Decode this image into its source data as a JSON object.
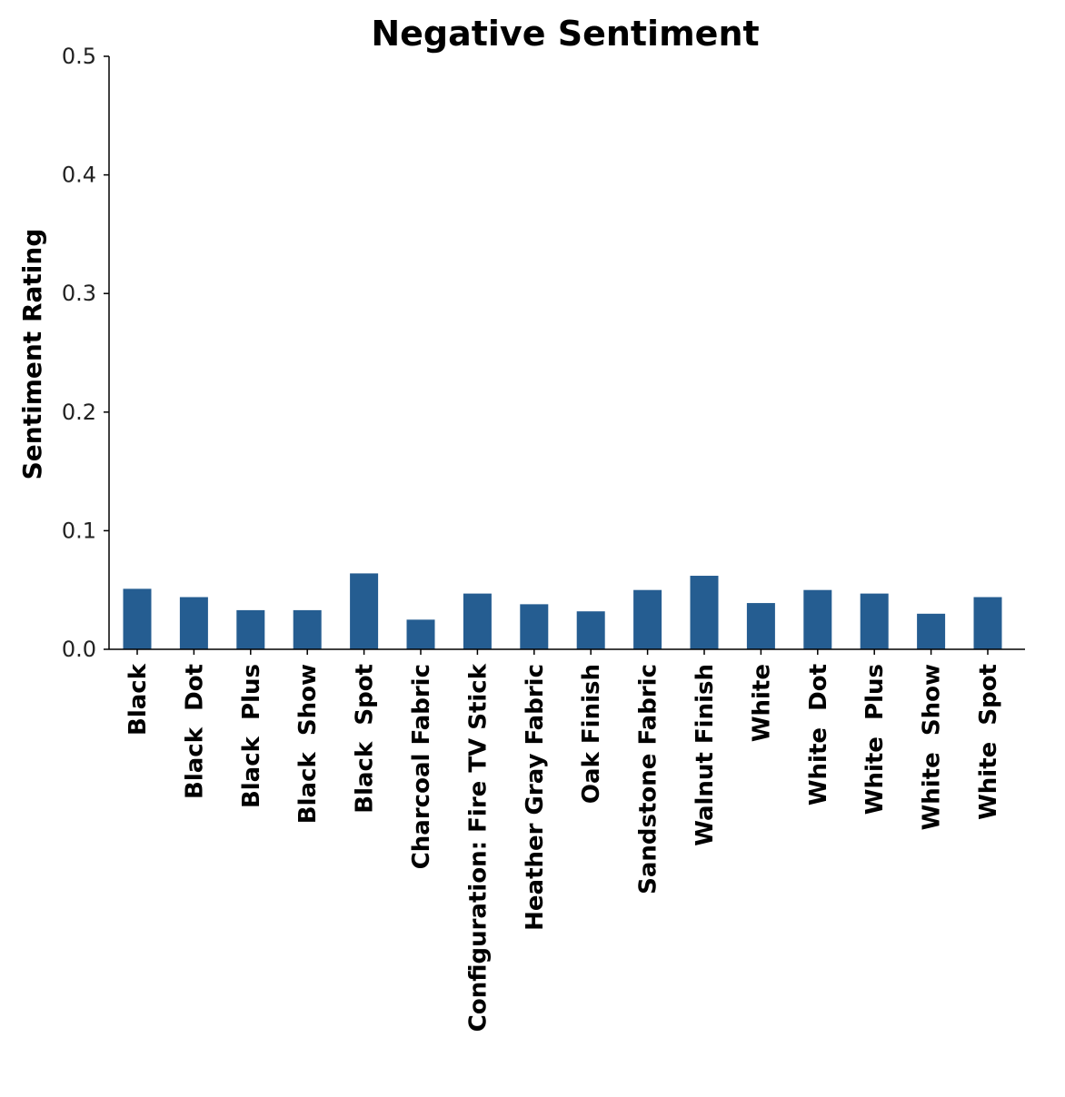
{
  "chart_data": {
    "type": "bar",
    "title": "Negative Sentiment",
    "xlabel": "",
    "ylabel": "Sentiment Rating",
    "ylim": [
      0,
      0.5
    ],
    "yticks": [
      0.0,
      0.1,
      0.2,
      0.3,
      0.4,
      0.5
    ],
    "ytick_labels": [
      "0.0",
      "0.1",
      "0.2",
      "0.3",
      "0.4",
      "0.5"
    ],
    "categories": [
      "Black",
      "Black  Dot",
      "Black  Plus",
      "Black  Show",
      "Black  Spot",
      "Charcoal Fabric",
      "Configuration: Fire TV Stick",
      "Heather Gray Fabric",
      "Oak Finish",
      "Sandstone Fabric",
      "Walnut Finish",
      "White",
      "White  Dot",
      "White  Plus",
      "White  Show",
      "White  Spot"
    ],
    "values": [
      0.051,
      0.044,
      0.033,
      0.033,
      0.064,
      0.025,
      0.047,
      0.038,
      0.032,
      0.05,
      0.062,
      0.039,
      0.05,
      0.047,
      0.03,
      0.044
    ],
    "bar_color": "#255d91",
    "grid": false,
    "legend": "none"
  }
}
